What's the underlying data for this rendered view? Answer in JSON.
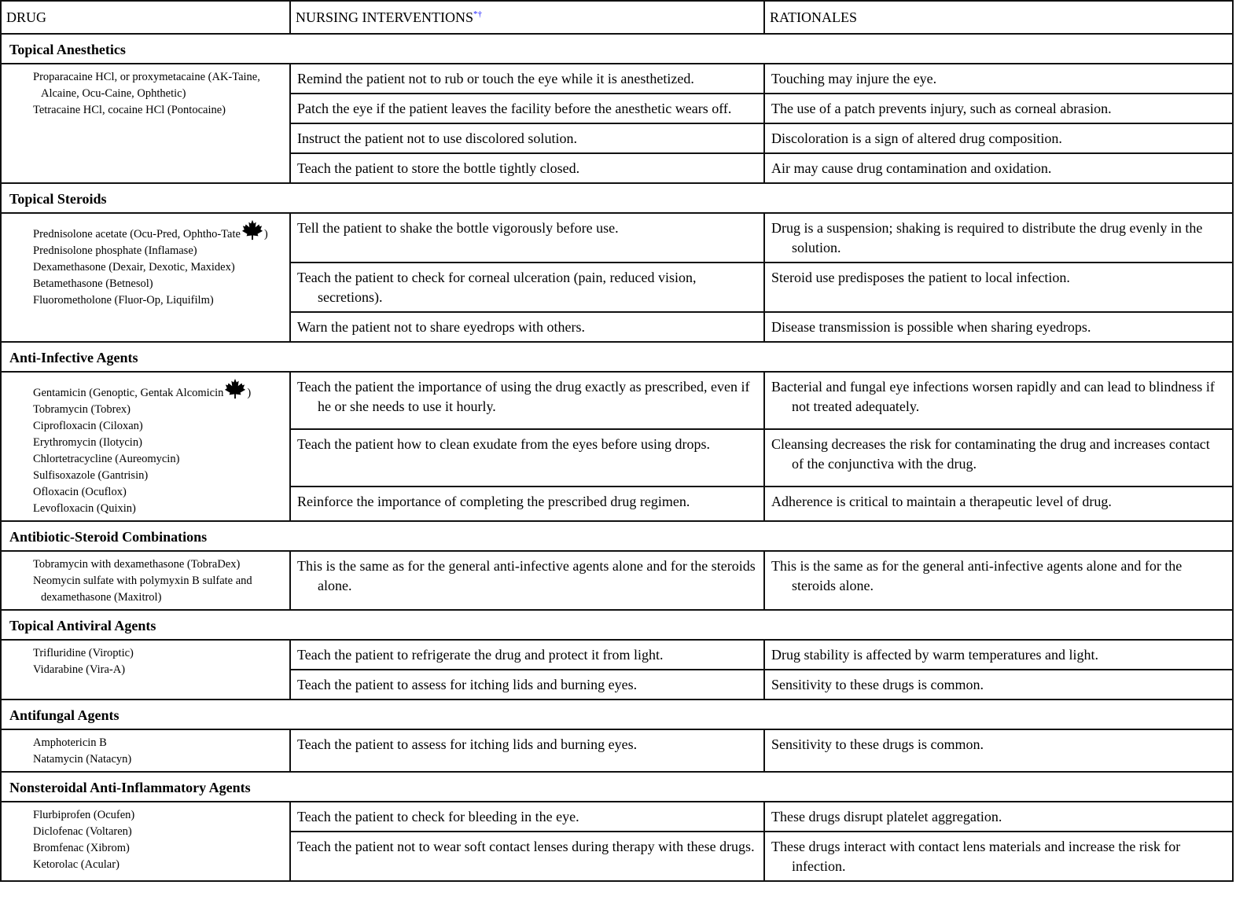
{
  "header": {
    "drug": "DRUG",
    "interventions": "NURSING INTERVENTIONS",
    "interventions_marks": "*†",
    "rationales": "RATIONALES"
  },
  "sections": [
    {
      "title": "Topical Anesthetics",
      "drugs": [
        {
          "name": "Proparacaine HCl, or proxymetacaine (AK-Taine, Alcaine, Ocu-Caine, Ophthetic)"
        },
        {
          "name": "Tetracaine HCl, cocaine HCl (Pontocaine)"
        }
      ],
      "rows": [
        {
          "intervention": "Remind the patient not to rub or touch the eye while it is anesthetized.",
          "rationale": "Touching may injure the eye."
        },
        {
          "intervention": "Patch the eye if the patient leaves the facility before the anesthetic wears off.",
          "rationale": "The use of a patch prevents injury, such as corneal abrasion."
        },
        {
          "intervention": "Instruct the patient not to use discolored solution.",
          "rationale": "Discoloration is a sign of altered drug composition."
        },
        {
          "intervention": "Teach the patient to store the bottle tightly closed.",
          "rationale": "Air may cause drug contamination and oxidation."
        }
      ]
    },
    {
      "title": "Topical Steroids",
      "drugs": [
        {
          "name": "Prednisolone acetate (Ocu-Pred, Ophtho-Tate",
          "maple": true,
          "tail": ")"
        },
        {
          "name": "Prednisolone phosphate (Inflamase)"
        },
        {
          "name": "Dexamethasone (Dexair, Dexotic, Maxidex)"
        },
        {
          "name": "Betamethasone (Betnesol)"
        },
        {
          "name": "Fluorometholone (Fluor-Op, Liquifilm)"
        }
      ],
      "rows": [
        {
          "intervention": "Tell the patient to shake the bottle vigorously before use.",
          "rationale": "Drug is a suspension; shaking is required to distribute the drug evenly in the solution."
        },
        {
          "intervention": "Teach the patient to check for corneal ulceration (pain, reduced vision, secretions).",
          "rationale": "Steroid use predisposes the patient to local infection."
        },
        {
          "intervention": "Warn the patient not to share eyedrops with others.",
          "rationale": "Disease transmission is possible when sharing eyedrops."
        }
      ]
    },
    {
      "title": "Anti-Infective Agents",
      "drugs": [
        {
          "name": "Gentamicin (Genoptic, Gentak Alcomicin",
          "maple": true,
          "tail": ")"
        },
        {
          "name": "Tobramycin (Tobrex)"
        },
        {
          "name": "Ciprofloxacin (Ciloxan)"
        },
        {
          "name": "Erythromycin (Ilotycin)"
        },
        {
          "name": "Chlortetracycline (Aureomycin)"
        },
        {
          "name": "Sulfisoxazole (Gantrisin)"
        },
        {
          "name": "Ofloxacin (Ocuflox)"
        },
        {
          "name": "Levofloxacin (Quixin)"
        }
      ],
      "rows": [
        {
          "intervention": "Teach the patient the importance of using the drug exactly as prescribed, even if he or she needs to use it hourly.",
          "rationale": "Bacterial and fungal eye infections worsen rapidly and can lead to blindness if not treated adequately."
        },
        {
          "intervention": "Teach the patient how to clean exudate from the eyes before using drops.",
          "rationale": "Cleansing decreases the risk for contaminating the drug and increases contact of the conjunctiva with the drug."
        },
        {
          "intervention": "Reinforce the importance of completing the prescribed drug regimen.",
          "rationale": "Adherence is critical to maintain a therapeutic level of drug."
        }
      ]
    },
    {
      "title": "Antibiotic-Steroid Combinations",
      "drugs": [
        {
          "name": "Tobramycin with dexamethasone (TobraDex)"
        },
        {
          "name": "Neomycin sulfate with polymyxin B sulfate and dexamethasone (Maxitrol)"
        }
      ],
      "rows": [
        {
          "intervention": "This is the same as for the general anti-infective agents alone and for the steroids alone.",
          "rationale": "This is the same as for the general anti-infective agents alone and for the steroids alone."
        }
      ]
    },
    {
      "title": "Topical Antiviral Agents",
      "drugs": [
        {
          "name": "Trifluridine (Viroptic)"
        },
        {
          "name": "Vidarabine (Vira-A)"
        }
      ],
      "rows": [
        {
          "intervention": "Teach the patient to refrigerate the drug and protect it from light.",
          "rationale": "Drug stability is affected by warm temperatures and light."
        },
        {
          "intervention": "Teach the patient to assess for itching lids and burning eyes.",
          "rationale": "Sensitivity to these drugs is common."
        }
      ]
    },
    {
      "title": "Antifungal Agents",
      "drugs": [
        {
          "name": "Amphotericin B"
        },
        {
          "name": "Natamycin (Natacyn)"
        }
      ],
      "rows": [
        {
          "intervention": "Teach the patient to assess for itching lids and burning eyes.",
          "rationale": "Sensitivity to these drugs is common."
        }
      ]
    },
    {
      "title": "Nonsteroidal Anti-Inflammatory Agents",
      "drugs": [
        {
          "name": "Flurbiprofen (Ocufen)"
        },
        {
          "name": "Diclofenac (Voltaren)"
        },
        {
          "name": "Bromfenac (Xibrom)"
        },
        {
          "name": "Ketorolac (Acular)"
        }
      ],
      "rows": [
        {
          "intervention": "Teach the patient to check for bleeding in the eye.",
          "rationale": "These drugs disrupt platelet aggregation."
        },
        {
          "intervention": "Teach the patient not to wear soft contact lenses during therapy with these drugs.",
          "rationale": "These drugs interact with contact lens materials and increase the risk for infection."
        }
      ]
    }
  ],
  "icons": {
    "maple": "maple-leaf-icon"
  }
}
